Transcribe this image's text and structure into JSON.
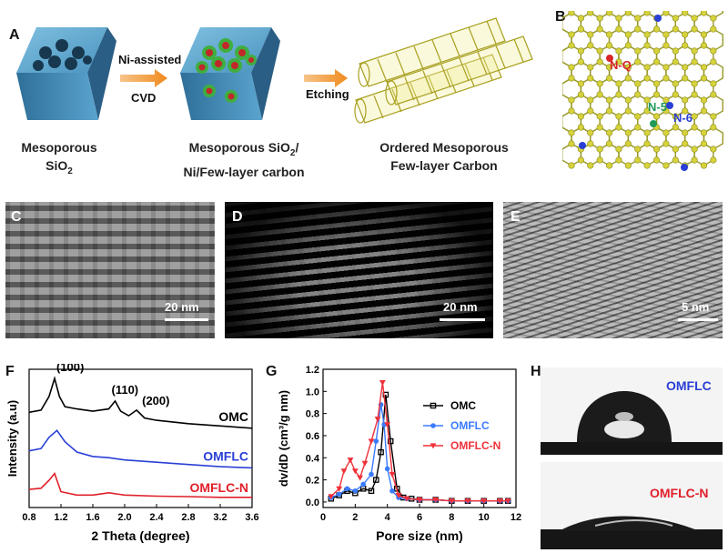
{
  "panels": {
    "A": "A",
    "B": "B",
    "C": "C",
    "D": "D",
    "E": "E",
    "F": "F",
    "G": "G",
    "H": "H"
  },
  "schematic": {
    "step1_top": "Ni-assisted",
    "step1_bottom": "CVD",
    "step2": "Etching",
    "caption1_line1": "Mesoporous",
    "caption1_line2": "SiO",
    "caption1_line2_sub": "2",
    "caption2_line1": "Mesoporous SiO",
    "caption2_line1_sub": "2",
    "caption2_line1_end": "/",
    "caption2_line2": "Ni/Few-layer carbon",
    "caption3_line1": "Ordered Mesoporous",
    "caption3_line2": "Few-layer Carbon"
  },
  "structure_labels": {
    "nq": "N-Q",
    "n5": "N-5",
    "n6": "N-6"
  },
  "micrographs": {
    "C_scale": "20 nm",
    "D_scale": "20 nm",
    "E_scale": "5 nm"
  },
  "contact_angle": {
    "top": "OMFLC",
    "bottom": "OMFLC-N",
    "top_color": "#2a3fd6",
    "bottom_color": "#e0202a"
  },
  "chart_data": [
    {
      "type": "line",
      "panel": "F",
      "xlabel": "2 Theta (degree)",
      "ylabel": "Intensity (a.u)",
      "xlim": [
        0.8,
        3.6
      ],
      "xticks": [
        "0.8",
        "1.2",
        "1.6",
        "2.0",
        "2.4",
        "2.8",
        "3.2",
        "3.6"
      ],
      "peak_labels": [
        "(100)",
        "(110)",
        "(200)"
      ],
      "series": [
        {
          "name": "OMC",
          "color": "#000000",
          "x": [
            0.8,
            0.95,
            1.05,
            1.12,
            1.18,
            1.25,
            1.4,
            1.6,
            1.8,
            1.88,
            1.95,
            2.05,
            2.15,
            2.25,
            2.4,
            2.8,
            3.2,
            3.6
          ],
          "y": [
            8.7,
            8.8,
            9.4,
            10.2,
            9.4,
            8.95,
            8.85,
            8.75,
            8.85,
            9.2,
            8.75,
            8.55,
            8.8,
            8.45,
            8.35,
            8.2,
            8.1,
            8.0
          ]
        },
        {
          "name": "OMFLC",
          "color": "#2a3fd6",
          "x": [
            0.8,
            0.95,
            1.05,
            1.15,
            1.25,
            1.4,
            1.6,
            1.8,
            2.0,
            2.4,
            2.8,
            3.2,
            3.6
          ],
          "y": [
            7.0,
            7.1,
            7.6,
            7.9,
            7.4,
            6.95,
            6.75,
            6.7,
            6.6,
            6.5,
            6.4,
            6.3,
            6.25
          ]
        },
        {
          "name": "OMFLC-N",
          "color": "#e0202a",
          "x": [
            0.8,
            0.95,
            1.05,
            1.12,
            1.2,
            1.4,
            1.6,
            1.8,
            2.0,
            2.4,
            2.8,
            3.2,
            3.6
          ],
          "y": [
            5.3,
            5.35,
            5.7,
            6.0,
            5.2,
            5.05,
            5.05,
            5.15,
            5.05,
            5.0,
            4.98,
            4.95,
            4.95
          ]
        }
      ]
    },
    {
      "type": "line",
      "panel": "G",
      "xlabel": "Pore size (nm)",
      "ylabel": "dv/dD (cm³/g nm)",
      "xlim": [
        0,
        12
      ],
      "ylim": [
        -0.05,
        1.2
      ],
      "xticks": [
        "0",
        "2",
        "4",
        "6",
        "8",
        "10",
        "12"
      ],
      "yticks": [
        "0.0",
        "0.2",
        "0.4",
        "0.6",
        "0.8",
        "1.0",
        "1.2"
      ],
      "legend": "top-right",
      "series": [
        {
          "name": "OMC",
          "color": "#000000",
          "marker": "square",
          "x": [
            0.5,
            1.0,
            1.5,
            2.0,
            2.5,
            3.0,
            3.3,
            3.6,
            3.9,
            4.2,
            4.6,
            5.0,
            5.5,
            6,
            7,
            8,
            9,
            10,
            11,
            11.5
          ],
          "y": [
            0.03,
            0.06,
            0.1,
            0.08,
            0.12,
            0.1,
            0.2,
            0.45,
            0.97,
            0.55,
            0.12,
            0.04,
            0.03,
            0.02,
            0.02,
            0.01,
            0.01,
            0.01,
            0.01,
            0.01
          ]
        },
        {
          "name": "OMFLC",
          "color": "#3a7bff",
          "marker": "circle",
          "x": [
            0.5,
            1.0,
            1.5,
            2.0,
            2.5,
            3.0,
            3.3,
            3.6,
            3.8,
            4.0,
            4.3,
            4.7,
            5.2,
            6,
            7,
            8,
            9,
            10,
            11,
            11.5
          ],
          "y": [
            0.04,
            0.07,
            0.12,
            0.1,
            0.16,
            0.25,
            0.55,
            0.88,
            0.7,
            0.3,
            0.1,
            0.04,
            0.03,
            0.02,
            0.02,
            0.01,
            0.01,
            0.01,
            0.01,
            0.01
          ]
        },
        {
          "name": "OMFLC-N",
          "color": "#f0303a",
          "marker": "triangle-down",
          "x": [
            0.5,
            1.0,
            1.3,
            1.7,
            2.0,
            2.3,
            2.6,
            3.0,
            3.4,
            3.7,
            4.0,
            4.3,
            4.7,
            5.2,
            6,
            7,
            8,
            9,
            10,
            11,
            11.5
          ],
          "y": [
            0.05,
            0.12,
            0.28,
            0.38,
            0.28,
            0.22,
            0.35,
            0.55,
            0.75,
            1.08,
            0.7,
            0.25,
            0.06,
            0.03,
            0.02,
            0.02,
            0.01,
            0.01,
            0.01,
            0.01,
            0.01
          ]
        }
      ]
    }
  ]
}
